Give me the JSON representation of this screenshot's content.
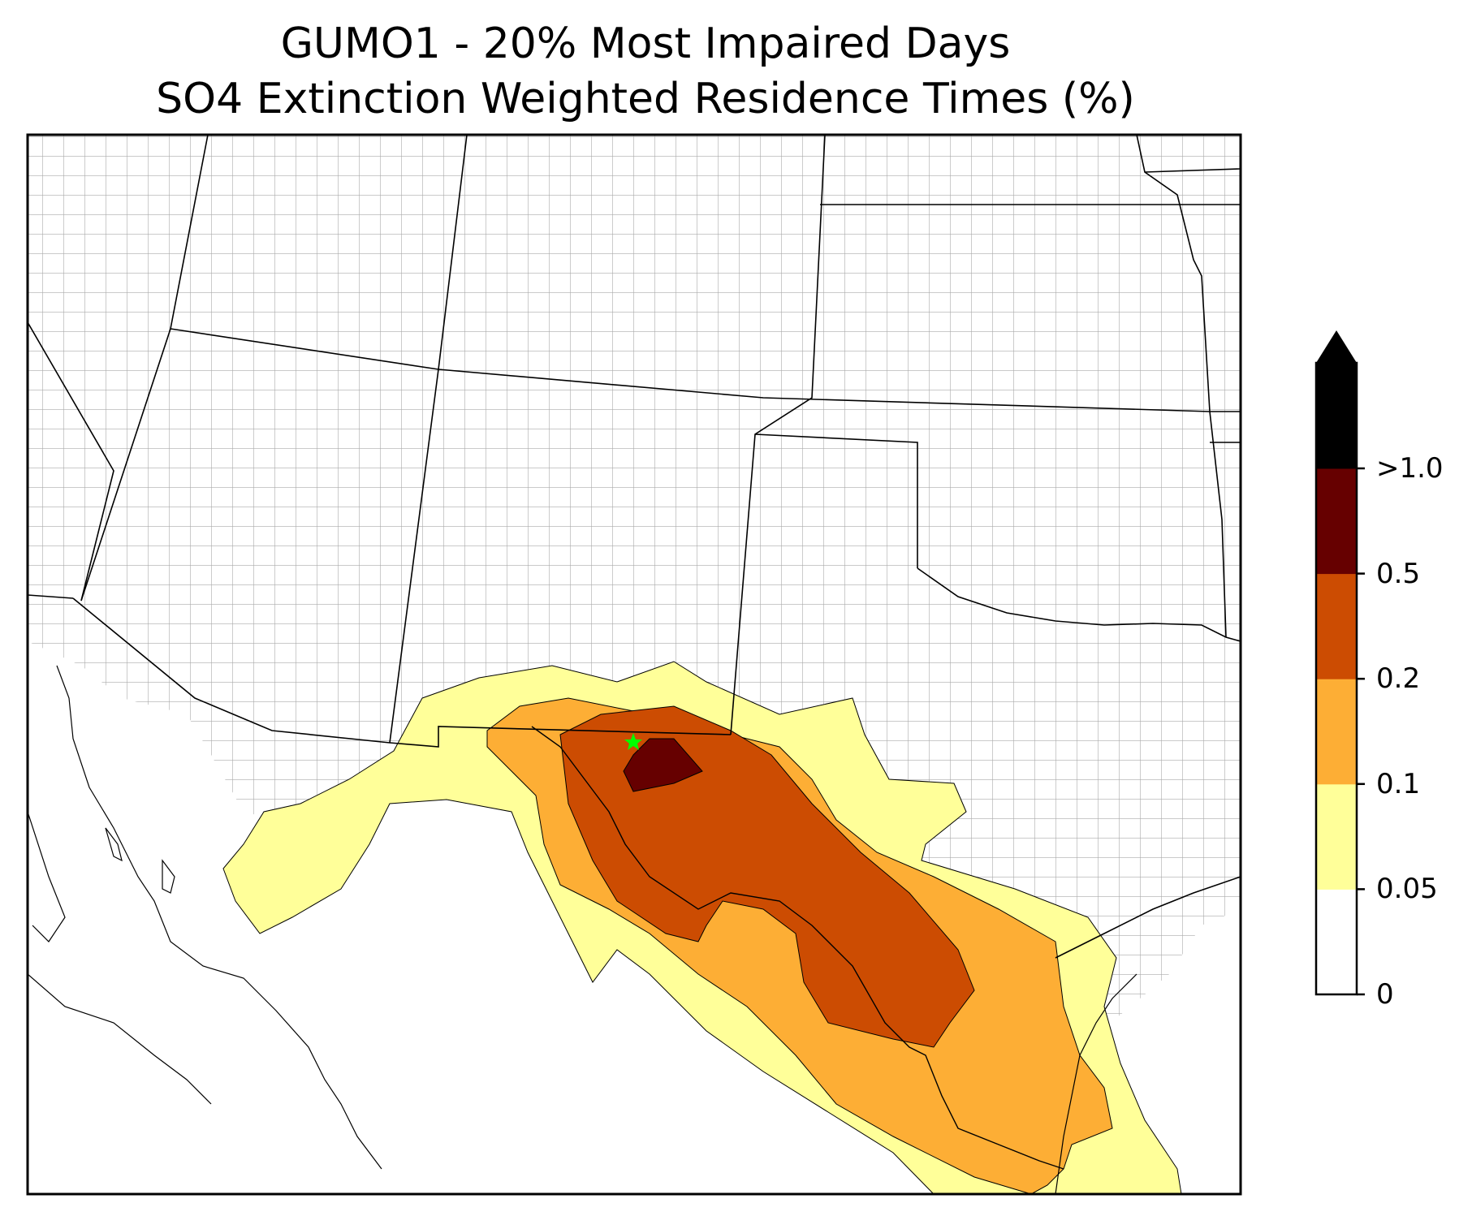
{
  "title": {
    "line1": "GUMO1 - 20% Most Impaired Days",
    "line2": "SO4 Extinction Weighted Residence Times (%)"
  },
  "colorbar": {
    "levels": [
      {
        "label": "0",
        "color": "#ffffff"
      },
      {
        "label": "0.05",
        "color": "#ffff99"
      },
      {
        "label": "0.1",
        "color": "#fdae35"
      },
      {
        "label": "0.2",
        "color": "#cc4c02"
      },
      {
        "label": "0.5",
        "color": "#660000"
      },
      {
        "label": ">1.0",
        "color": "#000000"
      }
    ],
    "extend": "max"
  },
  "site_marker": {
    "color": "#00ff00",
    "symbol": "star"
  }
}
